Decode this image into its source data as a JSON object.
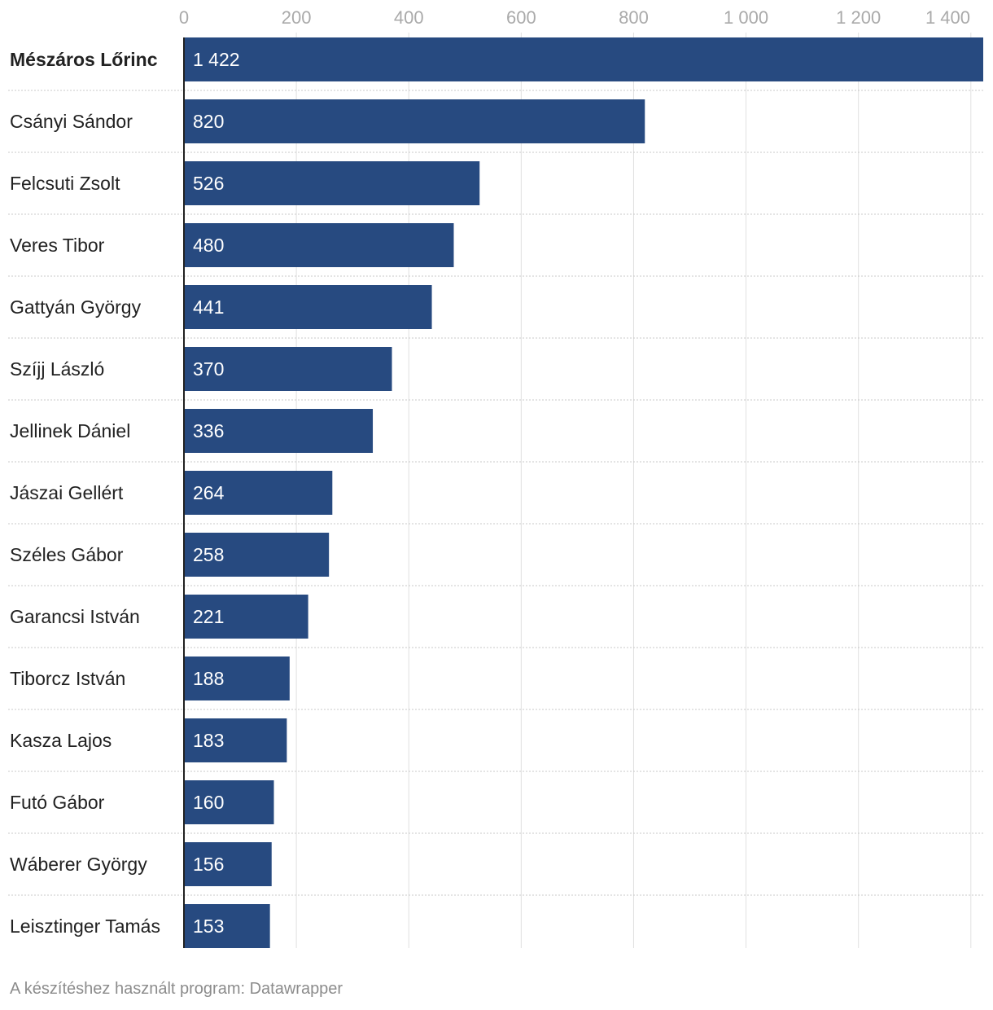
{
  "chart_data": {
    "type": "bar",
    "orientation": "horizontal",
    "categories": [
      "Mészáros Lőrinc",
      "Csányi Sándor",
      "Felcsuti Zsolt",
      "Veres Tibor",
      "Gattyán György",
      "Szíjj László",
      "Jellinek Dániel",
      "Jászai Gellért",
      "Széles Gábor",
      "Garancsi István",
      "Tiborcz István",
      "Kasza Lajos",
      "Futó Gábor",
      "Wáberer György",
      "Leisztinger Tamás"
    ],
    "values": [
      1422,
      820,
      526,
      480,
      441,
      370,
      336,
      264,
      258,
      221,
      188,
      183,
      160,
      156,
      153
    ],
    "value_labels": [
      "1 422",
      "820",
      "526",
      "480",
      "441",
      "370",
      "336",
      "264",
      "258",
      "221",
      "188",
      "183",
      "160",
      "156",
      "153"
    ],
    "highlight_category": "Mészáros Lőrinc",
    "xlim": [
      0,
      1422
    ],
    "x_ticks": [
      0,
      200,
      400,
      600,
      800,
      1000,
      1200,
      1400
    ],
    "x_tick_labels": [
      "0",
      "200",
      "400",
      "600",
      "800",
      "1 000",
      "1 200",
      "1 400"
    ],
    "axis_position": "top",
    "grid": true,
    "title": "",
    "xlabel": "",
    "ylabel": "",
    "bar_color": "#274a80",
    "grid_color": "#e0e0e0",
    "label_color": "#222222",
    "tick_color": "#aaaaaa",
    "value_label_color": "#ffffff"
  },
  "footer": {
    "text": "A készítéshez használt program: Datawrapper"
  }
}
